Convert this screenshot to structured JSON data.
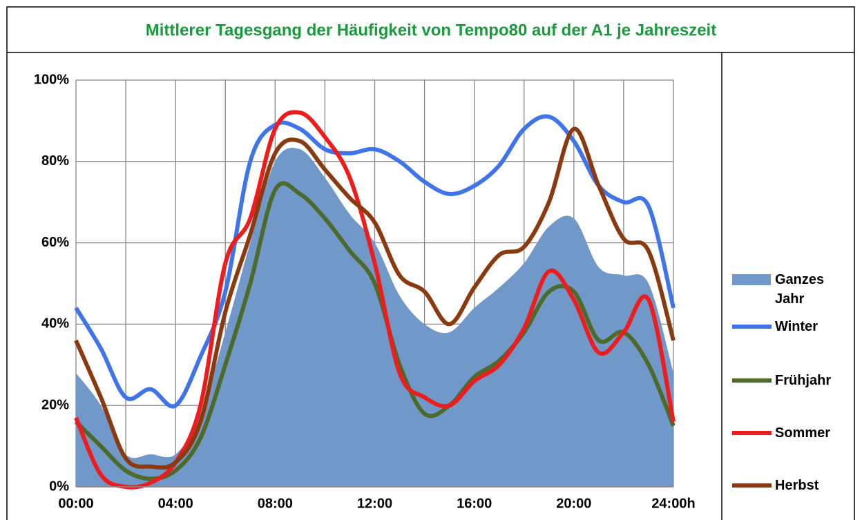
{
  "chart_data": {
    "type": "line",
    "title": "Mittlerer Tagesgang der Häufigkeit von Tempo80 auf der A1 je Jahreszeit",
    "x": [
      0,
      1,
      2,
      3,
      4,
      5,
      6,
      7,
      8,
      9,
      10,
      11,
      12,
      13,
      14,
      15,
      16,
      17,
      18,
      19,
      20,
      21,
      22,
      23,
      24
    ],
    "xlim": [
      0,
      24
    ],
    "xticks": [
      {
        "value": 0,
        "label": "00:00"
      },
      {
        "value": 4,
        "label": "04:00"
      },
      {
        "value": 8,
        "label": "08:00"
      },
      {
        "value": 12,
        "label": "12:00"
      },
      {
        "value": 16,
        "label": "16:00"
      },
      {
        "value": 20,
        "label": "20:00"
      },
      {
        "value": 24,
        "label": "24:00h"
      }
    ],
    "xgrid_minor": [
      2,
      6,
      10,
      14,
      18,
      22
    ],
    "ylim": [
      0,
      100
    ],
    "yticks": [
      {
        "value": 0,
        "label": "0%"
      },
      {
        "value": 20,
        "label": "20%"
      },
      {
        "value": 40,
        "label": "40%"
      },
      {
        "value": 60,
        "label": "60%"
      },
      {
        "value": 80,
        "label": "80%"
      },
      {
        "value": 100,
        "label": "100%"
      }
    ],
    "grid": true,
    "legend": "right",
    "series": [
      {
        "name": "Ganzes Jahr",
        "style": "area",
        "color": "#7099c9",
        "values": [
          28,
          20,
          8,
          8,
          8,
          18,
          38,
          60,
          80,
          83,
          76,
          67,
          60,
          47,
          40,
          38,
          44,
          49,
          55,
          64,
          66,
          54,
          52,
          50,
          28
        ]
      },
      {
        "name": "Winter",
        "style": "line",
        "color": "#3f74ea",
        "values": [
          44,
          34,
          22,
          24,
          20,
          32,
          48,
          80,
          89,
          88,
          83,
          82,
          83,
          80,
          75,
          72,
          74,
          79,
          88,
          91,
          85,
          74,
          70,
          69,
          44
        ]
      },
      {
        "name": "Frühjahr",
        "style": "line",
        "color": "#4b6a2c",
        "values": [
          16,
          10,
          4,
          2,
          4,
          12,
          30,
          50,
          73,
          72,
          66,
          58,
          50,
          30,
          18,
          20,
          27,
          31,
          38,
          48,
          48,
          36,
          38,
          30,
          15
        ]
      },
      {
        "name": "Sommer",
        "style": "line",
        "color": "#ee1c1c",
        "values": [
          17,
          3,
          0,
          1,
          6,
          20,
          55,
          66,
          88,
          92,
          86,
          76,
          55,
          28,
          22,
          20,
          26,
          30,
          39,
          53,
          46,
          33,
          38,
          46,
          16
        ]
      },
      {
        "name": "Herbst",
        "style": "line",
        "color": "#8b3a10",
        "values": [
          36,
          22,
          7,
          5,
          6,
          16,
          43,
          62,
          82,
          85,
          78,
          71,
          65,
          52,
          48,
          40,
          49,
          57,
          59,
          70,
          88,
          74,
          61,
          58,
          36
        ]
      }
    ]
  }
}
